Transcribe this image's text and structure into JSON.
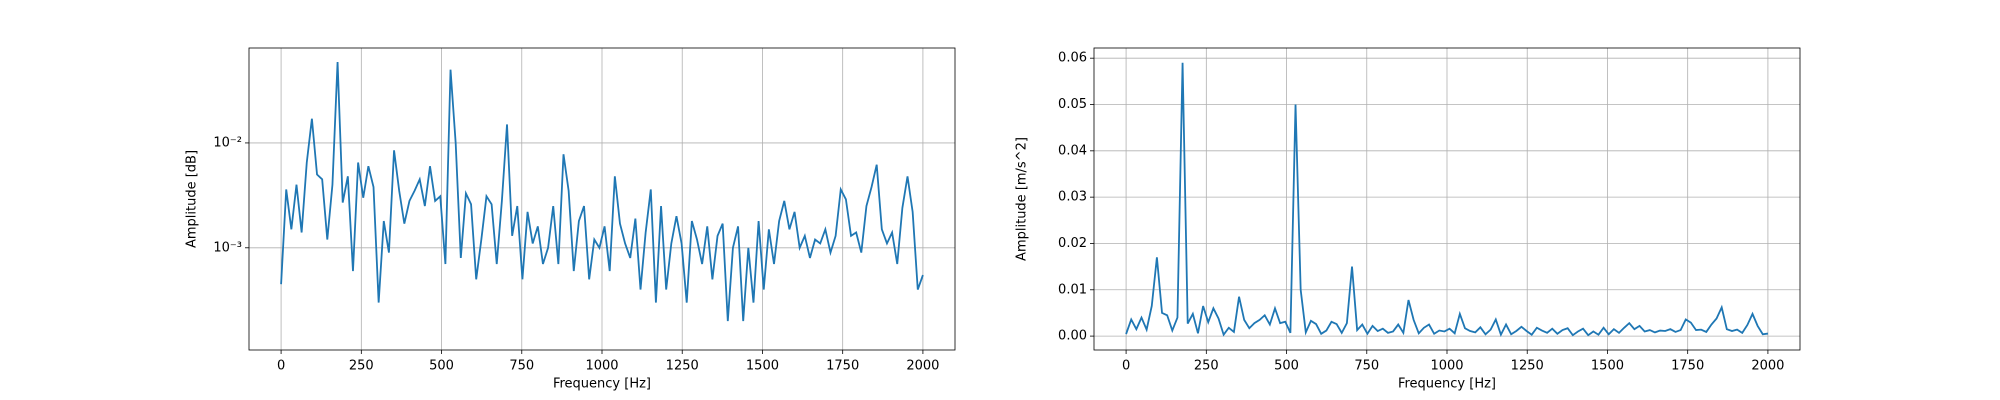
{
  "chart_data": [
    {
      "type": "line",
      "log_y": true,
      "grid": true,
      "xlabel": "Frequency [Hz]",
      "ylabel": "Amplitude [dB]",
      "xlim": [
        -100,
        2100
      ],
      "xticks": [
        0,
        250,
        500,
        750,
        1000,
        1250,
        1500,
        1750,
        2000
      ],
      "ylim": [
        0.000106,
        0.0804
      ],
      "yticks": [
        {
          "value": 0.001,
          "label": "10⁻³"
        },
        {
          "value": 0.01,
          "label": "10⁻²"
        }
      ],
      "x": [
        0,
        16,
        32,
        48,
        64,
        80,
        96,
        112,
        128,
        144,
        160,
        176,
        192,
        208,
        224,
        240,
        256,
        272,
        288,
        304,
        320,
        336,
        352,
        368,
        384,
        400,
        416,
        432,
        448,
        464,
        480,
        496,
        512,
        528,
        544,
        560,
        576,
        592,
        608,
        624,
        640,
        656,
        672,
        688,
        704,
        720,
        736,
        752,
        768,
        784,
        800,
        816,
        832,
        848,
        864,
        880,
        896,
        912,
        928,
        944,
        960,
        976,
        992,
        1008,
        1024,
        1040,
        1056,
        1072,
        1088,
        1104,
        1120,
        1136,
        1152,
        1168,
        1184,
        1200,
        1216,
        1232,
        1248,
        1264,
        1280,
        1296,
        1312,
        1328,
        1344,
        1360,
        1376,
        1392,
        1408,
        1424,
        1440,
        1456,
        1472,
        1488,
        1504,
        1520,
        1536,
        1552,
        1568,
        1584,
        1600,
        1616,
        1632,
        1648,
        1664,
        1680,
        1696,
        1712,
        1728,
        1744,
        1760,
        1776,
        1792,
        1808,
        1824,
        1840,
        1856,
        1872,
        1888,
        1904,
        1920,
        1936,
        1952,
        1968,
        1984,
        2000
      ],
      "series": [
        {
          "color": "#1f77b4",
          "values": [
            0.00045,
            0.0036,
            0.0015,
            0.004,
            0.0014,
            0.0065,
            0.017,
            0.005,
            0.0045,
            0.0012,
            0.004,
            0.059,
            0.0027,
            0.0048,
            0.0006,
            0.0065,
            0.003,
            0.006,
            0.0038,
            0.0003,
            0.0018,
            0.0009,
            0.0085,
            0.0035,
            0.0017,
            0.0028,
            0.0035,
            0.0045,
            0.0025,
            0.006,
            0.0028,
            0.0031,
            0.0007,
            0.05,
            0.01,
            0.0008,
            0.0033,
            0.0026,
            0.0005,
            0.0012,
            0.0031,
            0.0026,
            0.0007,
            0.0028,
            0.015,
            0.0013,
            0.0025,
            0.0005,
            0.0022,
            0.0011,
            0.0016,
            0.0007,
            0.001,
            0.0025,
            0.0007,
            0.0078,
            0.0035,
            0.0006,
            0.0018,
            0.0025,
            0.0005,
            0.0012,
            0.001,
            0.0016,
            0.0006,
            0.0048,
            0.0017,
            0.0011,
            0.0008,
            0.0019,
            0.0004,
            0.0014,
            0.0036,
            0.0003,
            0.0025,
            0.0004,
            0.0011,
            0.002,
            0.0011,
            0.0003,
            0.0018,
            0.0012,
            0.0007,
            0.0016,
            0.0005,
            0.0013,
            0.0017,
            0.0002,
            0.001,
            0.0016,
            0.0002,
            0.001,
            0.0003,
            0.0018,
            0.0004,
            0.0015,
            0.0007,
            0.0018,
            0.0028,
            0.0015,
            0.0022,
            0.001,
            0.0013,
            0.0008,
            0.0012,
            0.0011,
            0.0015,
            0.0009,
            0.0013,
            0.0036,
            0.0029,
            0.0013,
            0.0014,
            0.0009,
            0.0025,
            0.0038,
            0.0062,
            0.0015,
            0.0011,
            0.0014,
            0.0007,
            0.0024,
            0.0048,
            0.0022,
            0.0004,
            0.00055
          ]
        }
      ]
    },
    {
      "type": "line",
      "log_y": false,
      "grid": true,
      "xlabel": "Frequency [Hz]",
      "ylabel": "Amplitude [m/s^2]",
      "xlim": [
        -100,
        2100
      ],
      "xticks": [
        0,
        250,
        500,
        750,
        1000,
        1250,
        1500,
        1750,
        2000
      ],
      "ylim": [
        -0.003,
        0.0622
      ],
      "yticks": [
        {
          "value": 0,
          "label": "0.00"
        },
        {
          "value": 0.01,
          "label": "0.01"
        },
        {
          "value": 0.02,
          "label": "0.02"
        },
        {
          "value": 0.03,
          "label": "0.03"
        },
        {
          "value": 0.04,
          "label": "0.04"
        },
        {
          "value": 0.05,
          "label": "0.05"
        },
        {
          "value": 0.06,
          "label": "0.06"
        }
      ],
      "x": [
        0,
        16,
        32,
        48,
        64,
        80,
        96,
        112,
        128,
        144,
        160,
        176,
        192,
        208,
        224,
        240,
        256,
        272,
        288,
        304,
        320,
        336,
        352,
        368,
        384,
        400,
        416,
        432,
        448,
        464,
        480,
        496,
        512,
        528,
        544,
        560,
        576,
        592,
        608,
        624,
        640,
        656,
        672,
        688,
        704,
        720,
        736,
        752,
        768,
        784,
        800,
        816,
        832,
        848,
        864,
        880,
        896,
        912,
        928,
        944,
        960,
        976,
        992,
        1008,
        1024,
        1040,
        1056,
        1072,
        1088,
        1104,
        1120,
        1136,
        1152,
        1168,
        1184,
        1200,
        1216,
        1232,
        1248,
        1264,
        1280,
        1296,
        1312,
        1328,
        1344,
        1360,
        1376,
        1392,
        1408,
        1424,
        1440,
        1456,
        1472,
        1488,
        1504,
        1520,
        1536,
        1552,
        1568,
        1584,
        1600,
        1616,
        1632,
        1648,
        1664,
        1680,
        1696,
        1712,
        1728,
        1744,
        1760,
        1776,
        1792,
        1808,
        1824,
        1840,
        1856,
        1872,
        1888,
        1904,
        1920,
        1936,
        1952,
        1968,
        1984,
        2000
      ],
      "series": [
        {
          "color": "#1f77b4",
          "values": [
            0.00045,
            0.0036,
            0.0015,
            0.004,
            0.0014,
            0.0065,
            0.017,
            0.005,
            0.0045,
            0.0012,
            0.004,
            0.059,
            0.0027,
            0.0048,
            0.0006,
            0.0065,
            0.003,
            0.006,
            0.0038,
            0.0003,
            0.0018,
            0.0009,
            0.0085,
            0.0035,
            0.0017,
            0.0028,
            0.0035,
            0.0045,
            0.0025,
            0.006,
            0.0028,
            0.0031,
            0.0007,
            0.05,
            0.01,
            0.0008,
            0.0033,
            0.0026,
            0.0005,
            0.0012,
            0.0031,
            0.0026,
            0.0007,
            0.0028,
            0.015,
            0.0013,
            0.0025,
            0.0005,
            0.0022,
            0.0011,
            0.0016,
            0.0007,
            0.001,
            0.0025,
            0.0007,
            0.0078,
            0.0035,
            0.0006,
            0.0018,
            0.0025,
            0.0005,
            0.0012,
            0.001,
            0.0016,
            0.0006,
            0.0048,
            0.0017,
            0.0011,
            0.0008,
            0.0019,
            0.0004,
            0.0014,
            0.0036,
            0.0003,
            0.0025,
            0.0004,
            0.0011,
            0.002,
            0.0011,
            0.0003,
            0.0018,
            0.0012,
            0.0007,
            0.0016,
            0.0005,
            0.0013,
            0.0017,
            0.0002,
            0.001,
            0.0016,
            0.0002,
            0.001,
            0.0003,
            0.0018,
            0.0004,
            0.0015,
            0.0007,
            0.0018,
            0.0028,
            0.0015,
            0.0022,
            0.001,
            0.0013,
            0.0008,
            0.0012,
            0.0011,
            0.0015,
            0.0009,
            0.0013,
            0.0036,
            0.0029,
            0.0013,
            0.0014,
            0.0009,
            0.0025,
            0.0038,
            0.0062,
            0.0015,
            0.0011,
            0.0014,
            0.0007,
            0.0024,
            0.0048,
            0.0022,
            0.0004,
            0.00055
          ]
        }
      ]
    }
  ]
}
